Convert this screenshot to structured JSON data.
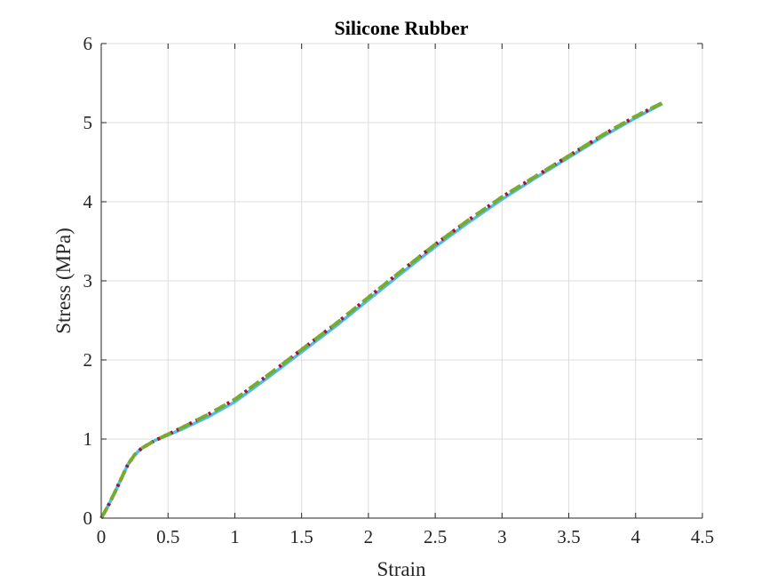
{
  "chart_data": {
    "type": "line",
    "title": "Silicone Rubber",
    "xlabel": "Strain",
    "ylabel": "Stress (MPa)",
    "xlim": [
      0,
      4.5
    ],
    "ylim": [
      0,
      6
    ],
    "xticks": [
      "0",
      "0.5",
      "1",
      "1.5",
      "2",
      "2.5",
      "3",
      "3.5",
      "4",
      "4.5"
    ],
    "yticks": [
      "0",
      "1",
      "2",
      "3",
      "4",
      "5",
      "6"
    ],
    "grid": true,
    "legend": "none",
    "series": [
      {
        "style": "solid",
        "color": "#4DBEEE",
        "x": [
          0,
          0.05,
          0.1,
          0.15,
          0.2,
          0.25,
          0.3,
          0.4,
          0.5,
          0.6,
          0.8,
          1.0,
          1.25,
          1.5,
          1.75,
          2.0,
          2.25,
          2.5,
          2.75,
          3.0,
          3.25,
          3.5,
          3.75,
          4.0,
          4.2
        ],
        "y": [
          0,
          0.15,
          0.32,
          0.5,
          0.68,
          0.8,
          0.88,
          0.98,
          1.05,
          1.12,
          1.28,
          1.47,
          1.78,
          2.1,
          2.42,
          2.76,
          3.1,
          3.43,
          3.74,
          4.03,
          4.3,
          4.56,
          4.82,
          5.06,
          5.24
        ]
      },
      {
        "style": "dotted",
        "color": "#A2142F",
        "x": [
          0,
          0.05,
          0.1,
          0.15,
          0.2,
          0.25,
          0.3,
          0.4,
          0.5,
          0.6,
          0.8,
          1.0,
          1.25,
          1.5,
          1.75,
          2.0,
          2.25,
          2.5,
          2.75,
          3.0,
          3.25,
          3.5,
          3.75,
          4.0,
          4.2
        ],
        "y": [
          0,
          0.15,
          0.32,
          0.5,
          0.68,
          0.8,
          0.88,
          0.98,
          1.06,
          1.14,
          1.31,
          1.5,
          1.81,
          2.13,
          2.45,
          2.79,
          3.13,
          3.46,
          3.77,
          4.06,
          4.32,
          4.58,
          4.84,
          5.08,
          5.25
        ]
      },
      {
        "style": "dashed",
        "color": "#77AC30",
        "x": [
          0,
          0.05,
          0.1,
          0.15,
          0.2,
          0.25,
          0.3,
          0.4,
          0.5,
          0.6,
          0.8,
          1.0,
          1.25,
          1.5,
          1.75,
          2.0,
          2.25,
          2.5,
          2.75,
          3.0,
          3.25,
          3.5,
          3.75,
          4.0,
          4.2
        ],
        "y": [
          0,
          0.15,
          0.32,
          0.5,
          0.68,
          0.8,
          0.88,
          0.98,
          1.06,
          1.14,
          1.31,
          1.5,
          1.81,
          2.13,
          2.45,
          2.79,
          3.13,
          3.46,
          3.77,
          4.06,
          4.32,
          4.58,
          4.84,
          5.08,
          5.25
        ]
      }
    ]
  }
}
